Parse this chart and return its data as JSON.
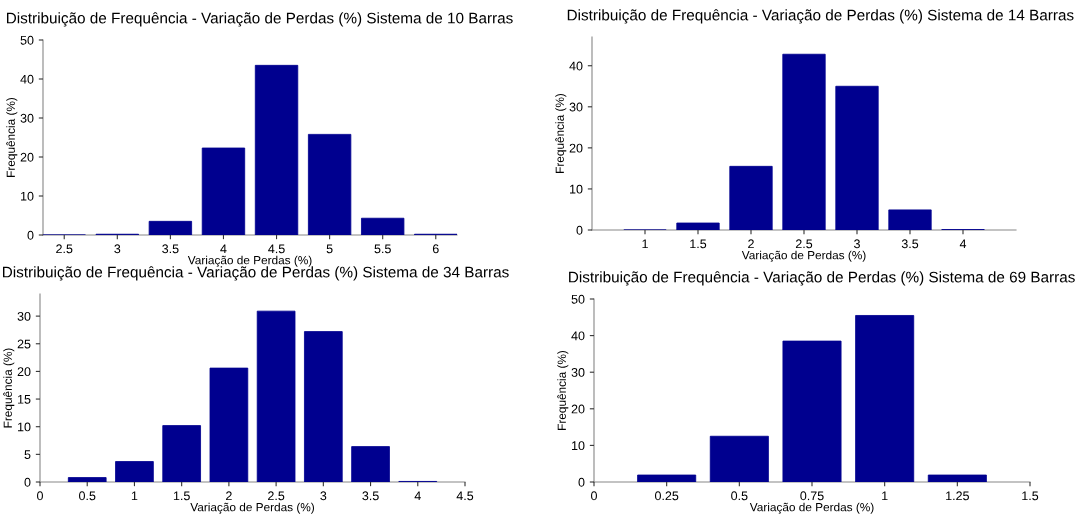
{
  "chart_data": [
    {
      "type": "bar",
      "title": "Distribuição de Frequência - Variação de Perdas (%) Sistema de 10 Barras",
      "xlabel": "Variação de Perdas (%)",
      "ylabel": "Frequência (%)",
      "x": [
        2.5,
        3,
        3.5,
        4,
        4.5,
        5,
        5.5,
        6
      ],
      "values": [
        0,
        0.2,
        3.5,
        22.3,
        43.5,
        25.8,
        4.3,
        0.2
      ],
      "color": "#00008f",
      "xlim": [
        2.3,
        6.2
      ],
      "xticks": [
        2.5,
        3,
        3.5,
        4,
        4.5,
        5,
        5.5,
        6
      ],
      "ylim": [
        0,
        50
      ],
      "yticks": [
        0,
        10,
        20,
        30,
        40,
        50
      ],
      "grid": false
    },
    {
      "type": "bar",
      "title": "Distribuição de Frequência - Variação de Perdas (%) Sistema de 14 Barras",
      "xlabel": "Variação de Perdas (%)",
      "ylabel": "Frequência (%)",
      "x": [
        1,
        1.5,
        2,
        2.5,
        3,
        3.5,
        4
      ],
      "values": [
        0,
        1.7,
        15.5,
        42.8,
        35,
        4.9,
        0.1
      ],
      "color": "#00008f",
      "xlim": [
        0.5,
        4.5
      ],
      "xticks": [
        1,
        1.5,
        2,
        2.5,
        3,
        3.5,
        4
      ],
      "ylim": [
        0,
        47
      ],
      "yticks": [
        0,
        10,
        20,
        30,
        40
      ],
      "grid": false
    },
    {
      "type": "bar",
      "title": "Distribuição de Frequência - Variação de Perdas (%) Sistema de 34 Barras",
      "xlabel": "Variação de Perdas (%)",
      "ylabel": "Frequência (%)",
      "x": [
        0.5,
        1,
        1.5,
        2,
        2.5,
        3,
        3.5,
        4
      ],
      "values": [
        0.8,
        3.7,
        10.2,
        20.6,
        30.9,
        27.2,
        6.4,
        0.1
      ],
      "color": "#00008f",
      "xlim": [
        0,
        4.5
      ],
      "xticks": [
        0,
        0.5,
        1,
        1.5,
        2,
        2.5,
        3,
        3.5,
        4,
        4.5
      ],
      "ylim": [
        0,
        34
      ],
      "yticks": [
        0,
        5,
        10,
        15,
        20,
        25,
        30
      ],
      "grid": false
    },
    {
      "type": "bar",
      "title": "Distribuição de Frequência - Variação de Perdas (%) Sistema de 69 Barras",
      "xlabel": "Variação de Perdas (%)",
      "ylabel": "Frequência (%)",
      "x": [
        0.25,
        0.5,
        0.75,
        1,
        1.25
      ],
      "values": [
        1.9,
        12.5,
        38.5,
        45.5,
        1.9
      ],
      "color": "#00008f",
      "xlim": [
        0,
        1.5
      ],
      "xticks": [
        0,
        0.25,
        0.5,
        0.75,
        1,
        1.25,
        1.5
      ],
      "ylim": [
        0,
        50
      ],
      "yticks": [
        0,
        10,
        20,
        30,
        40,
        50
      ],
      "grid": false
    }
  ]
}
